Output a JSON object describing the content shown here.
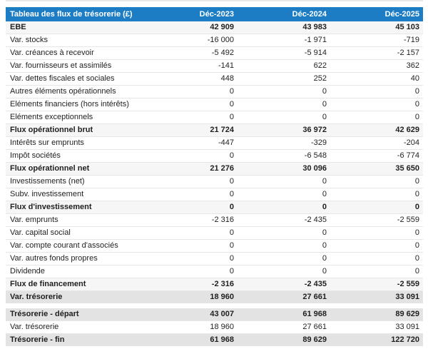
{
  "table": {
    "title": "Tableau des flux de trésorerie (£)",
    "columns": [
      "Déc-2023",
      "Déc-2024",
      "Déc-2025"
    ],
    "rows": [
      {
        "label": "EBE",
        "values": [
          "42 909",
          "43 983",
          "45 103"
        ],
        "style": "subtotal"
      },
      {
        "label": "Var. stocks",
        "values": [
          "-16 000",
          "-1 971",
          "-719"
        ],
        "style": "normal"
      },
      {
        "label": "Var. créances à recevoir",
        "values": [
          "-5 492",
          "-5 914",
          "-2 157"
        ],
        "style": "normal"
      },
      {
        "label": "Var. fournisseurs et assimilés",
        "values": [
          "-141",
          "622",
          "362"
        ],
        "style": "normal"
      },
      {
        "label": "Var. dettes fiscales et sociales",
        "values": [
          "448",
          "252",
          "40"
        ],
        "style": "normal"
      },
      {
        "label": "Autres éléments opérationnels",
        "values": [
          "0",
          "0",
          "0"
        ],
        "style": "normal"
      },
      {
        "label": "Eléments financiers (hors intérêts)",
        "values": [
          "0",
          "0",
          "0"
        ],
        "style": "normal"
      },
      {
        "label": "Eléments exceptionnels",
        "values": [
          "0",
          "0",
          "0"
        ],
        "style": "normal"
      },
      {
        "label": "Flux opérationnel brut",
        "values": [
          "21 724",
          "36 972",
          "42 629"
        ],
        "style": "subtotal"
      },
      {
        "label": "Intérêts sur emprunts",
        "values": [
          "-447",
          "-329",
          "-204"
        ],
        "style": "normal"
      },
      {
        "label": "Impôt sociétés",
        "values": [
          "0",
          "-6 548",
          "-6 774"
        ],
        "style": "normal"
      },
      {
        "label": "Flux opérationnel net",
        "values": [
          "21 276",
          "30 096",
          "35 650"
        ],
        "style": "subtotal"
      },
      {
        "label": "Investissements (net)",
        "values": [
          "0",
          "0",
          "0"
        ],
        "style": "normal"
      },
      {
        "label": "Subv. investissement",
        "values": [
          "0",
          "0",
          "0"
        ],
        "style": "normal"
      },
      {
        "label": "Flux d'investissement",
        "values": [
          "0",
          "0",
          "0"
        ],
        "style": "subtotal"
      },
      {
        "label": "Var. emprunts",
        "values": [
          "-2 316",
          "-2 435",
          "-2 559"
        ],
        "style": "normal"
      },
      {
        "label": "Var. capital social",
        "values": [
          "0",
          "0",
          "0"
        ],
        "style": "normal"
      },
      {
        "label": "Var. compte courant d'associés",
        "values": [
          "0",
          "0",
          "0"
        ],
        "style": "normal"
      },
      {
        "label": "Var. autres fonds propres",
        "values": [
          "0",
          "0",
          "0"
        ],
        "style": "normal"
      },
      {
        "label": "Dividende",
        "values": [
          "0",
          "0",
          "0"
        ],
        "style": "normal"
      },
      {
        "label": "Flux de financement",
        "values": [
          "-2 316",
          "-2 435",
          "-2 559"
        ],
        "style": "subtotal"
      },
      {
        "label": "Var. trésorerie",
        "values": [
          "18 960",
          "27 661",
          "33 091"
        ],
        "style": "total"
      },
      {
        "label": "",
        "values": [],
        "style": "spacer"
      },
      {
        "label": "Trésorerie - départ",
        "values": [
          "43 007",
          "61 968",
          "89 629"
        ],
        "style": "total"
      },
      {
        "label": "Var. trésorerie",
        "values": [
          "18 960",
          "27 661",
          "33 091"
        ],
        "style": "normal"
      },
      {
        "label": "Trésorerie - fin",
        "values": [
          "61 968",
          "89 629",
          "122 720"
        ],
        "style": "total"
      }
    ],
    "colors": {
      "header_bg": "#1d7dc4",
      "header_text": "#ffffff",
      "subtotal_bg": "#f6f6f6",
      "total_bg": "#e3e3e3",
      "row_border": "#e7e7e7",
      "text": "#1f1f1f"
    }
  },
  "chart_data": {
    "type": "table",
    "title": "Tableau des flux de trésorerie (£)",
    "categories": [
      "Déc-2023",
      "Déc-2024",
      "Déc-2025"
    ],
    "series": [
      {
        "name": "EBE",
        "values": [
          42909,
          43983,
          45103
        ]
      },
      {
        "name": "Var. stocks",
        "values": [
          -16000,
          -1971,
          -719
        ]
      },
      {
        "name": "Var. créances à recevoir",
        "values": [
          -5492,
          -5914,
          -2157
        ]
      },
      {
        "name": "Var. fournisseurs et assimilés",
        "values": [
          -141,
          622,
          362
        ]
      },
      {
        "name": "Var. dettes fiscales et sociales",
        "values": [
          448,
          252,
          40
        ]
      },
      {
        "name": "Autres éléments opérationnels",
        "values": [
          0,
          0,
          0
        ]
      },
      {
        "name": "Eléments financiers (hors intérêts)",
        "values": [
          0,
          0,
          0
        ]
      },
      {
        "name": "Eléments exceptionnels",
        "values": [
          0,
          0,
          0
        ]
      },
      {
        "name": "Flux opérationnel brut",
        "values": [
          21724,
          36972,
          42629
        ]
      },
      {
        "name": "Intérêts sur emprunts",
        "values": [
          -447,
          -329,
          -204
        ]
      },
      {
        "name": "Impôt sociétés",
        "values": [
          0,
          -6548,
          -6774
        ]
      },
      {
        "name": "Flux opérationnel net",
        "values": [
          21276,
          30096,
          35650
        ]
      },
      {
        "name": "Investissements (net)",
        "values": [
          0,
          0,
          0
        ]
      },
      {
        "name": "Subv. investissement",
        "values": [
          0,
          0,
          0
        ]
      },
      {
        "name": "Flux d'investissement",
        "values": [
          0,
          0,
          0
        ]
      },
      {
        "name": "Var. emprunts",
        "values": [
          -2316,
          -2435,
          -2559
        ]
      },
      {
        "name": "Var. capital social",
        "values": [
          0,
          0,
          0
        ]
      },
      {
        "name": "Var. compte courant d'associés",
        "values": [
          0,
          0,
          0
        ]
      },
      {
        "name": "Var. autres fonds propres",
        "values": [
          0,
          0,
          0
        ]
      },
      {
        "name": "Dividende",
        "values": [
          0,
          0,
          0
        ]
      },
      {
        "name": "Flux de financement",
        "values": [
          -2316,
          -2435,
          -2559
        ]
      },
      {
        "name": "Var. trésorerie",
        "values": [
          18960,
          27661,
          33091
        ]
      },
      {
        "name": "Trésorerie - départ",
        "values": [
          43007,
          61968,
          89629
        ]
      },
      {
        "name": "Var. trésorerie",
        "values": [
          18960,
          27661,
          33091
        ]
      },
      {
        "name": "Trésorerie - fin",
        "values": [
          61968,
          89629,
          122720
        ]
      }
    ]
  }
}
